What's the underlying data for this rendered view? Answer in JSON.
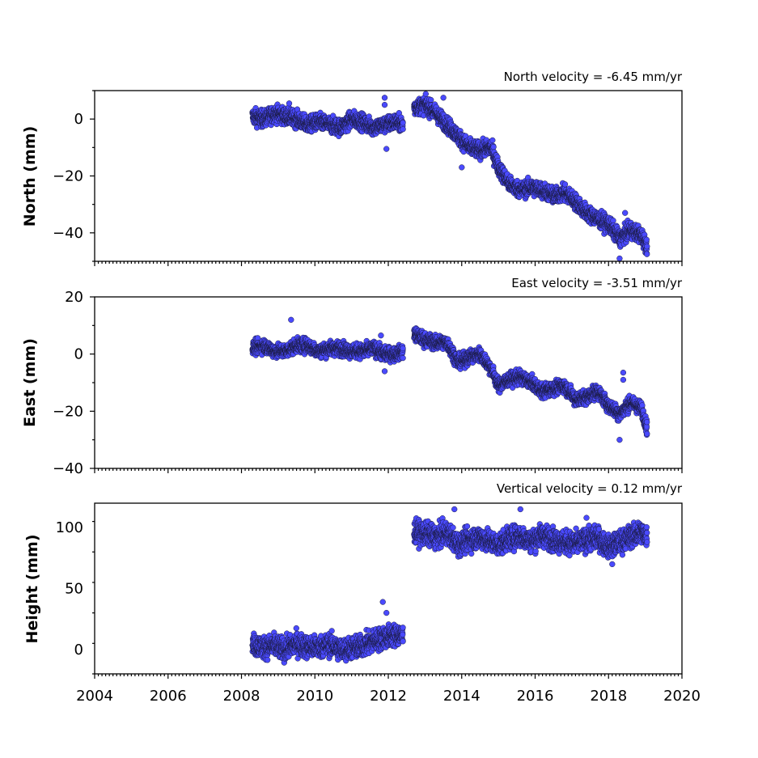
{
  "chart_data": [
    {
      "type": "scatter",
      "title": "North velocity = -6.45 mm/yr",
      "ylabel": "North (mm)",
      "xlabel": "",
      "xlim": [
        2004,
        2020
      ],
      "ylim": [
        -50,
        10
      ],
      "yticks": [
        0,
        -20,
        -40
      ],
      "ytick_labels": [
        "0",
        "−20",
        "−40"
      ],
      "xticks": [
        2004,
        2006,
        2008,
        2010,
        2012,
        2014,
        2016,
        2018,
        2020
      ],
      "xtick_labels": [],
      "grid": false,
      "point_color": "#4a4aff",
      "series": [
        {
          "x": [
            2008.3,
            2008.6,
            2008.9,
            2009.2,
            2009.5,
            2009.8,
            2010.1,
            2010.4,
            2010.7,
            2011.0,
            2011.3,
            2011.6,
            2011.9,
            2012.2,
            2012.4,
            2012.7,
            2013.0,
            2013.3,
            2013.6,
            2013.9,
            2014.2,
            2014.5,
            2014.8,
            2015.0,
            2015.3,
            2015.6,
            2015.9,
            2016.2,
            2016.5,
            2016.8,
            2017.1,
            2017.4,
            2017.7,
            2018.0,
            2018.3,
            2018.6,
            2018.9,
            2019.05
          ],
          "y": [
            1,
            0,
            2,
            1,
            0,
            -2,
            -1,
            -2,
            -3,
            0,
            -1,
            -3,
            -2,
            -1,
            -2,
            4,
            5,
            2,
            -2,
            -6,
            -10,
            -11,
            -10,
            -17,
            -23,
            -25,
            -24,
            -25,
            -27,
            -26,
            -29,
            -33,
            -35,
            -37,
            -42,
            -39,
            -41,
            -45
          ]
        }
      ],
      "outliers": [
        {
          "x": 2011.9,
          "y": 7.5
        },
        {
          "x": 2011.9,
          "y": 5
        },
        {
          "x": 2011.95,
          "y": -10.5
        },
        {
          "x": 2009.3,
          "y": 5.5
        },
        {
          "x": 2013.5,
          "y": 7.5
        },
        {
          "x": 2014.0,
          "y": -17
        },
        {
          "x": 2018.45,
          "y": -33
        },
        {
          "x": 2018.3,
          "y": -49
        }
      ]
    },
    {
      "type": "scatter",
      "title": "East velocity = -3.51 mm/yr",
      "ylabel": "East (mm)",
      "xlabel": "",
      "xlim": [
        2004,
        2020
      ],
      "ylim": [
        -40,
        20
      ],
      "yticks": [
        20,
        0,
        -20,
        -40
      ],
      "ytick_labels": [
        "20",
        "0",
        "−20",
        "−40"
      ],
      "xticks": [
        2004,
        2006,
        2008,
        2010,
        2012,
        2014,
        2016,
        2018,
        2020
      ],
      "xtick_labels": [],
      "grid": false,
      "point_color": "#4a4aff",
      "series": [
        {
          "x": [
            2008.3,
            2008.6,
            2008.9,
            2009.2,
            2009.5,
            2009.8,
            2010.1,
            2010.4,
            2010.7,
            2011.0,
            2011.3,
            2011.6,
            2011.9,
            2012.2,
            2012.4,
            2012.7,
            2013.0,
            2013.3,
            2013.6,
            2013.9,
            2014.2,
            2014.5,
            2014.8,
            2015.0,
            2015.3,
            2015.6,
            2015.9,
            2016.2,
            2016.5,
            2016.8,
            2017.1,
            2017.4,
            2017.7,
            2018.0,
            2018.3,
            2018.6,
            2018.9,
            2019.05
          ],
          "y": [
            2,
            3,
            1,
            1,
            3,
            3,
            1,
            2,
            2,
            1,
            1,
            2,
            0,
            0,
            1,
            7,
            5,
            4,
            4,
            -3,
            -1,
            0,
            -5,
            -11,
            -9,
            -8,
            -10,
            -13,
            -12,
            -11,
            -16,
            -15,
            -13,
            -18,
            -21,
            -17,
            -19,
            -26
          ]
        }
      ],
      "outliers": [
        {
          "x": 2009.35,
          "y": 12
        },
        {
          "x": 2011.8,
          "y": 6.5
        },
        {
          "x": 2011.9,
          "y": -6
        },
        {
          "x": 2018.3,
          "y": -30
        },
        {
          "x": 2018.4,
          "y": -6.5
        },
        {
          "x": 2018.4,
          "y": -9
        }
      ]
    },
    {
      "type": "scatter",
      "title": "Vertical velocity = 0.12 mm/yr",
      "ylabel": "Height (mm)",
      "xlabel": "",
      "xlim": [
        2004,
        2020
      ],
      "ylim": [
        -20,
        120
      ],
      "yticks": [
        100,
        50,
        0
      ],
      "ytick_labels": [
        "100",
        "50",
        "0"
      ],
      "xticks": [
        2004,
        2006,
        2008,
        2010,
        2012,
        2014,
        2016,
        2018,
        2020
      ],
      "xtick_labels": [
        "2004",
        "2006",
        "2008",
        "2010",
        "2012",
        "2014",
        "2016",
        "2018",
        "2020"
      ],
      "grid": false,
      "point_color": "#4a4aff",
      "series": [
        {
          "x": [
            2008.3,
            2008.6,
            2008.9,
            2009.2,
            2009.5,
            2009.8,
            2010.1,
            2010.4,
            2010.7,
            2011.0,
            2011.3,
            2011.6,
            2011.9,
            2012.2,
            2012.4,
            2012.7,
            2013.0,
            2013.3,
            2013.6,
            2013.9,
            2014.2,
            2014.5,
            2014.8,
            2015.0,
            2015.3,
            2015.6,
            2015.9,
            2016.2,
            2016.5,
            2016.8,
            2017.1,
            2017.4,
            2017.7,
            2018.0,
            2018.3,
            2018.6,
            2018.9,
            2019.05
          ],
          "y": [
            4,
            2,
            3,
            0,
            5,
            2,
            2,
            4,
            0,
            1,
            3,
            7,
            10,
            12,
            11,
            97,
            95,
            92,
            96,
            86,
            90,
            92,
            88,
            86,
            91,
            93,
            89,
            94,
            90,
            88,
            87,
            90,
            92,
            84,
            88,
            93,
            96,
            93
          ]
        }
      ],
      "outliers": [
        {
          "x": 2011.85,
          "y": 39
        },
        {
          "x": 2011.95,
          "y": 30
        },
        {
          "x": 2013.8,
          "y": 115
        },
        {
          "x": 2015.6,
          "y": 115
        },
        {
          "x": 2017.4,
          "y": 108
        },
        {
          "x": 2018.1,
          "y": 70
        }
      ]
    }
  ]
}
